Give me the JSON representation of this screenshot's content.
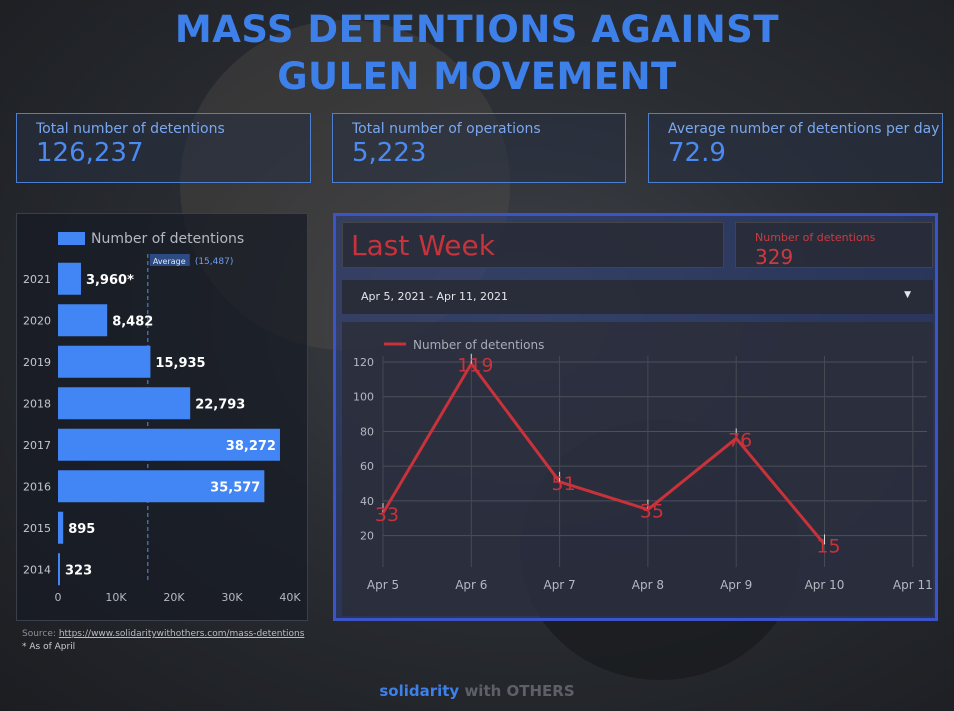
{
  "title_line1": "MASS DETENTIONS AGAINST",
  "title_line2": "GULEN MOVEMENT",
  "kpis": [
    {
      "label": "Total number of detentions",
      "value": "126,237"
    },
    {
      "label": "Total number of operations",
      "value": "5,223"
    },
    {
      "label": "Average number of detentions per day",
      "value": "72.9"
    }
  ],
  "last_week": {
    "title": "Last Week",
    "count_label": "Number of detentions",
    "count_value": "329",
    "date_range": "Apr 5, 2021 - Apr 11, 2021",
    "dropdown_icon": "caret-down-icon"
  },
  "source": {
    "prefix": "Source: ",
    "url": "https://www.solidaritywithothers.com/mass-detentions",
    "note": "* As of April"
  },
  "footer": {
    "brand_a": "solidarity",
    "brand_b": " with OTHERS"
  },
  "colors": {
    "accent_blue": "#3e80e9",
    "bar_blue": "#4285f4",
    "line_red": "#c8323a"
  },
  "chart_data": [
    {
      "type": "bar",
      "orientation": "horizontal",
      "legend": "Number of detentions",
      "categories": [
        "2021",
        "2020",
        "2019",
        "2018",
        "2017",
        "2016",
        "2015",
        "2014"
      ],
      "values": [
        3960,
        8482,
        15935,
        22793,
        38272,
        35577,
        895,
        323
      ],
      "value_labels": [
        "3,960*",
        "8,482",
        "15,935",
        "22,793",
        "38,272",
        "35,577",
        "895",
        "323"
      ],
      "xticks": [
        "0",
        "10K",
        "20K",
        "30K",
        "40K"
      ],
      "xlim": [
        0,
        40000
      ],
      "reference_line": {
        "label": "Average",
        "value_label": "(15,487)",
        "value": 15487
      }
    },
    {
      "type": "line",
      "legend": "Number of detentions",
      "x": [
        "Apr 5",
        "Apr 6",
        "Apr 7",
        "Apr 8",
        "Apr 9",
        "Apr 10"
      ],
      "xticks": [
        "Apr 5",
        "Apr 6",
        "Apr 7",
        "Apr 8",
        "Apr 9",
        "Apr 10",
        "Apr 11"
      ],
      "values": [
        33,
        119,
        51,
        35,
        76,
        15
      ],
      "ylim": [
        10,
        120
      ],
      "yticks": [
        20,
        40,
        60,
        80,
        100,
        120
      ]
    }
  ]
}
